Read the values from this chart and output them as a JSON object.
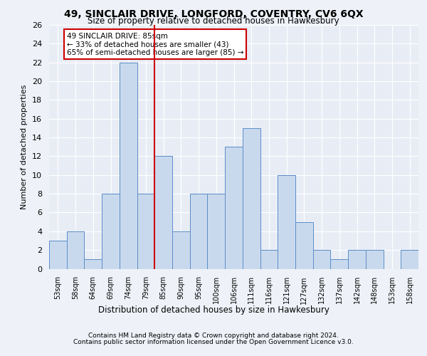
{
  "title1": "49, SINCLAIR DRIVE, LONGFORD, COVENTRY, CV6 6QX",
  "title2": "Size of property relative to detached houses in Hawkesbury",
  "xlabel": "Distribution of detached houses by size in Hawkesbury",
  "ylabel": "Number of detached properties",
  "categories": [
    "53sqm",
    "58sqm",
    "64sqm",
    "69sqm",
    "74sqm",
    "79sqm",
    "85sqm",
    "90sqm",
    "95sqm",
    "100sqm",
    "106sqm",
    "111sqm",
    "116sqm",
    "121sqm",
    "127sqm",
    "132sqm",
    "137sqm",
    "142sqm",
    "148sqm",
    "153sqm",
    "158sqm"
  ],
  "values": [
    3,
    4,
    1,
    8,
    22,
    8,
    12,
    4,
    8,
    8,
    13,
    15,
    2,
    10,
    5,
    2,
    1,
    2,
    2,
    0,
    2
  ],
  "bar_color": "#c9d9ed",
  "bar_edge_color": "#5b8dc8",
  "vline_color": "#cc0000",
  "annotation_text": "49 SINCLAIR DRIVE: 85sqm\n← 33% of detached houses are smaller (43)\n65% of semi-detached houses are larger (85) →",
  "annotation_box_color": "#ffffff",
  "annotation_box_edge": "#cc0000",
  "ylim": [
    0,
    26
  ],
  "yticks": [
    0,
    2,
    4,
    6,
    8,
    10,
    12,
    14,
    16,
    18,
    20,
    22,
    24,
    26
  ],
  "footer1": "Contains HM Land Registry data © Crown copyright and database right 2024.",
  "footer2": "Contains public sector information licensed under the Open Government Licence v3.0.",
  "bg_color": "#eef2f8",
  "plot_bg_color": "#e8edf5"
}
